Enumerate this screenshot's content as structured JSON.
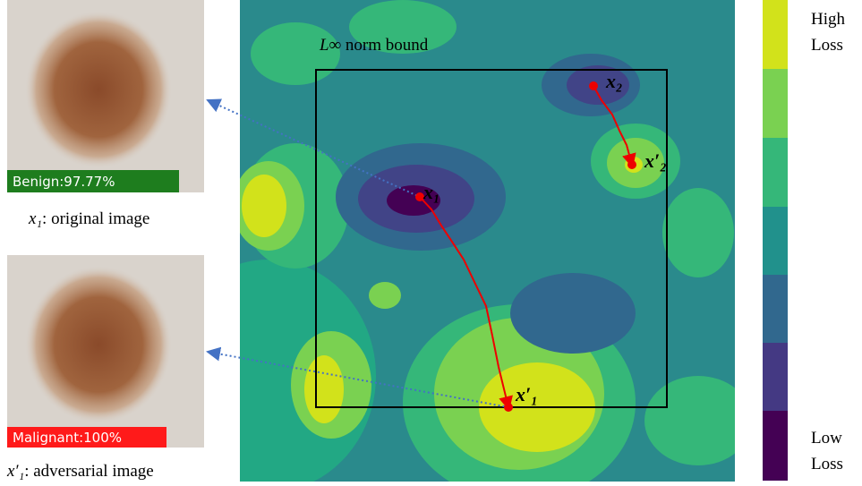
{
  "images": [
    {
      "badge": "Benign:97.77%",
      "caption_symbol": "x₁",
      "caption": ": original image"
    },
    {
      "badge": "Malignant:100%",
      "caption_symbol": "x′₁",
      "caption": ": adversarial image"
    }
  ],
  "plot": {
    "bound_symbol": "L∞",
    "bound_label": "norm bound",
    "points": [
      {
        "label": "x₂"
      },
      {
        "label": "x′₂"
      },
      {
        "label": "x₁"
      },
      {
        "label": "x′₁"
      }
    ]
  },
  "colorbar": {
    "top": [
      "High",
      "Loss"
    ],
    "bottom": [
      "Low",
      "Loss"
    ]
  }
}
